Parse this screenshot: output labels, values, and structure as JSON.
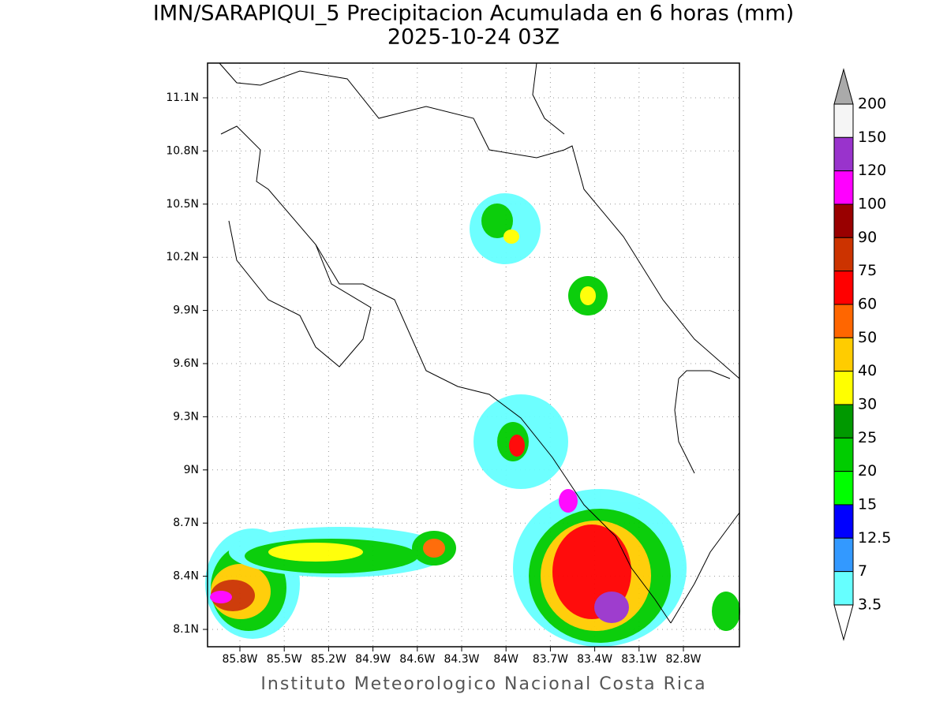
{
  "title": "IMN/SARAPIQUI_5 Precipitacion Acumulada en 6 horas (mm)",
  "subtitle": "2025-10-24 03Z",
  "lat_labels": [
    "11.1N",
    "10.8N",
    "10.5N",
    "10.2N",
    "9.9N",
    "9.6N",
    "9.3N",
    "9N",
    "8.7N",
    "8.4N",
    "8.1N"
  ],
  "lon_labels": [
    "85.8W",
    "85.5W",
    "85.2W",
    "84.9W",
    "84.6W",
    "84.3W",
    "84W",
    "83.7W",
    "83.4W",
    "83.1W",
    "82.8W"
  ],
  "legend": {
    "levels": [
      200,
      150,
      120,
      100,
      90,
      75,
      60,
      50,
      40,
      30,
      25,
      20,
      15,
      12.5,
      7,
      3.5
    ],
    "colors": [
      "#f5f5f5",
      "#9933cc",
      "#ff00ff",
      "#990000",
      "#cc3300",
      "#ff0000",
      "#ff6600",
      "#ffcc00",
      "#ffff00",
      "#009900",
      "#00cc00",
      "#00ff00",
      "#0000ff",
      "#3399ff",
      "#66ffff"
    ],
    "over_color": "#aaaaaa",
    "under_color": "#ffffff"
  },
  "footer": "Instituto Meteorologico Nacional Costa Rica"
}
